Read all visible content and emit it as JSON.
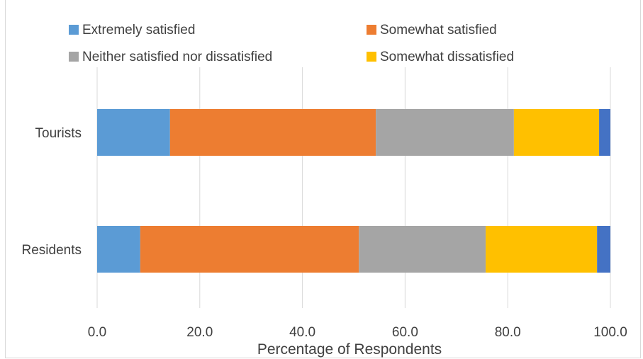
{
  "chart_data": {
    "type": "bar",
    "orientation": "horizontal",
    "stacked": true,
    "title": "",
    "xlabel": "Percentage of Respondents",
    "ylabel": "",
    "xlim": [
      0,
      100
    ],
    "x_ticks": [
      "0.0",
      "20.0",
      "40.0",
      "60.0",
      "80.0",
      "100.0"
    ],
    "grid": true,
    "legend_position": "top",
    "categories": [
      "Tourists",
      "Residents"
    ],
    "series": [
      {
        "name": "Extremely satisfied",
        "color": "#5b9bd5",
        "values": [
          14.2,
          8.4
        ]
      },
      {
        "name": "Somewhat satisfied",
        "color": "#ed7d31",
        "values": [
          40.1,
          42.6
        ]
      },
      {
        "name": "Neither satisfied nor dissatisfied",
        "color": "#a5a5a5",
        "values": [
          26.9,
          24.7
        ]
      },
      {
        "name": "Somewhat dissatisfied",
        "color": "#ffc000",
        "values": [
          16.6,
          21.7
        ]
      },
      {
        "name": "",
        "color": "#4472c4",
        "values": [
          2.2,
          2.6
        ]
      }
    ]
  }
}
